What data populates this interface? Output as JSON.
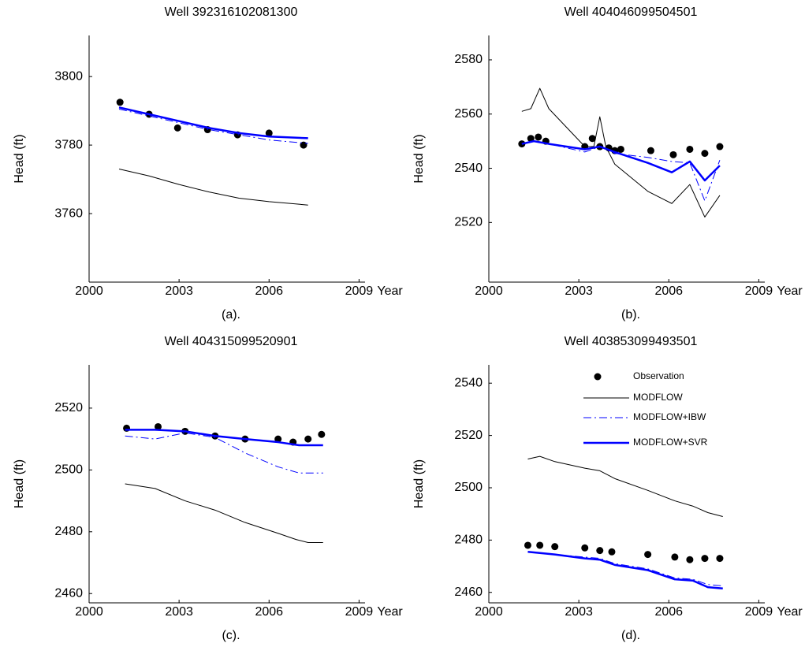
{
  "chart_data": [
    {
      "type": "line",
      "title": "Well 392316102081300",
      "caption": "(a).",
      "x_label": "Year",
      "y_label": "Head (ft)",
      "xlim": [
        2000,
        2009.2
      ],
      "xticks": [
        2000,
        2003,
        2006,
        2009
      ],
      "ylim": [
        3740,
        3812
      ],
      "yticks": [
        3760,
        3780,
        3800
      ],
      "series": [
        {
          "style": "marker",
          "color": "#000000",
          "x": [
            2001.03,
            2002.0,
            2002.95,
            2003.95,
            2004.95,
            2006.0,
            2007.15
          ],
          "values": [
            3792.5,
            3789,
            3785,
            3784.5,
            3783,
            3783.5,
            3780
          ]
        },
        {
          "style": "solid-thin",
          "color": "#000000",
          "x": [
            2001,
            2002,
            2003,
            2004,
            2005,
            2006,
            2007.3
          ],
          "values": [
            3773,
            3771,
            3768.5,
            3766.3,
            3764.5,
            3763.5,
            3762.5
          ]
        },
        {
          "style": "dashdot",
          "color": "#0000ff",
          "x": [
            2001,
            2002,
            2003,
            2004,
            2005,
            2006,
            2007.3
          ],
          "values": [
            3790.5,
            3788.5,
            3786.5,
            3784.5,
            3783,
            3781.5,
            3780.5
          ]
        },
        {
          "style": "solid-thick",
          "color": "#0000ff",
          "x": [
            2001,
            2002,
            2003,
            2004,
            2005,
            2006,
            2007.3
          ],
          "values": [
            3791,
            3789,
            3787,
            3785,
            3783.5,
            3782.5,
            3782
          ]
        }
      ]
    },
    {
      "type": "line",
      "title": "Well 404046099504501",
      "caption": "(b).",
      "x_label": "Year",
      "y_label": "Head (ft)",
      "xlim": [
        2000,
        2009.2
      ],
      "xticks": [
        2000,
        2003,
        2006,
        2009
      ],
      "ylim": [
        2498,
        2589
      ],
      "yticks": [
        2520,
        2540,
        2560,
        2580
      ],
      "series": [
        {
          "style": "marker",
          "color": "#000000",
          "x": [
            2001.1,
            2001.4,
            2001.65,
            2001.9,
            2003.2,
            2003.45,
            2003.7,
            2004.0,
            2004.2,
            2004.4,
            2005.4,
            2006.15,
            2006.7,
            2007.2,
            2007.7
          ],
          "values": [
            2549,
            2551,
            2551.5,
            2550,
            2548,
            2551,
            2548,
            2547.5,
            2546.5,
            2547,
            2546.5,
            2545,
            2547,
            2545.5,
            2548
          ]
        },
        {
          "style": "solid-thin",
          "color": "#000000",
          "x": [
            2001.1,
            2001.4,
            2001.7,
            2002.0,
            2003.2,
            2003.5,
            2003.7,
            2003.9,
            2004.2,
            2005.3,
            2006.1,
            2006.7,
            2007.2,
            2007.7
          ],
          "values": [
            2561,
            2562,
            2569.5,
            2562,
            2548,
            2548,
            2559,
            2548,
            2541.5,
            2531.5,
            2527,
            2534,
            2522,
            2530
          ]
        },
        {
          "style": "dashdot",
          "color": "#0000ff",
          "x": [
            2001.1,
            2001.5,
            2002.0,
            2003.2,
            2003.7,
            2004.2,
            2005.3,
            2006.1,
            2006.7,
            2007.2,
            2007.7
          ],
          "values": [
            2549,
            2550,
            2549,
            2546,
            2548,
            2545.5,
            2544,
            2542.5,
            2542,
            2528,
            2543
          ]
        },
        {
          "style": "solid-thick",
          "color": "#0000ff",
          "x": [
            2001.1,
            2001.5,
            2002.0,
            2003.2,
            2003.7,
            2004.2,
            2005.3,
            2006.1,
            2006.7,
            2007.2,
            2007.7
          ],
          "values": [
            2549,
            2550,
            2549,
            2547,
            2548,
            2546,
            2542,
            2538.5,
            2542.5,
            2535.5,
            2541
          ]
        }
      ]
    },
    {
      "type": "line",
      "title": "Well 404315099520901",
      "caption": "(c).",
      "x_label": "Year",
      "y_label": "Head (ft)",
      "xlim": [
        2000,
        2009.2
      ],
      "xticks": [
        2000,
        2003,
        2006,
        2009
      ],
      "ylim": [
        2457,
        2534
      ],
      "yticks": [
        2460,
        2480,
        2500,
        2520
      ],
      "series": [
        {
          "style": "marker",
          "color": "#000000",
          "x": [
            2001.25,
            2002.3,
            2003.2,
            2004.2,
            2005.2,
            2006.3,
            2006.8,
            2007.3,
            2007.75
          ],
          "values": [
            2513.5,
            2514,
            2512.5,
            2511,
            2510,
            2510,
            2509,
            2510,
            2511.5
          ]
        },
        {
          "style": "solid-thin",
          "color": "#000000",
          "x": [
            2001.2,
            2002.2,
            2003.2,
            2004.2,
            2005.2,
            2006.3,
            2006.9,
            2007.3,
            2007.8
          ],
          "values": [
            2495.5,
            2494,
            2490,
            2487,
            2483,
            2479.5,
            2477.5,
            2476.5,
            2476.5
          ]
        },
        {
          "style": "dashdot",
          "color": "#0000ff",
          "x": [
            2001.2,
            2002.2,
            2003.2,
            2004.2,
            2005.2,
            2006.3,
            2007.0,
            2007.8
          ],
          "values": [
            2511,
            2510,
            2512,
            2510.5,
            2505.5,
            2501,
            2499,
            2499
          ]
        },
        {
          "style": "solid-thick",
          "color": "#0000ff",
          "x": [
            2001.2,
            2002.2,
            2003.2,
            2004.2,
            2005.2,
            2006.3,
            2007.0,
            2007.8
          ],
          "values": [
            2513,
            2513,
            2512.5,
            2511,
            2510,
            2509,
            2508,
            2508
          ]
        }
      ]
    },
    {
      "type": "line",
      "title": "Well 403853099493501",
      "caption": "(d).",
      "x_label": "Year",
      "y_label": "Head (ft)",
      "xlim": [
        2000,
        2009.2
      ],
      "xticks": [
        2000,
        2003,
        2006,
        2009
      ],
      "ylim": [
        2456,
        2547
      ],
      "yticks": [
        2460,
        2480,
        2500,
        2520,
        2540
      ],
      "legend": "upper right",
      "series": [
        {
          "name": "Observation",
          "style": "marker",
          "color": "#000000",
          "x": [
            2001.3,
            2001.7,
            2002.2,
            2003.2,
            2003.7,
            2004.1,
            2005.3,
            2006.2,
            2006.7,
            2007.2,
            2007.7
          ],
          "values": [
            2478,
            2478,
            2477.5,
            2477,
            2476,
            2475.5,
            2474.5,
            2473.5,
            2472.5,
            2473,
            2473
          ]
        },
        {
          "name": "MODFLOW",
          "style": "solid-thin",
          "color": "#000000",
          "x": [
            2001.3,
            2001.7,
            2002.2,
            2003.2,
            2003.7,
            2004.2,
            2005.3,
            2006.2,
            2006.8,
            2007.3,
            2007.8
          ],
          "values": [
            2511,
            2512,
            2510,
            2507.5,
            2506.5,
            2503.5,
            2499,
            2495,
            2493,
            2490.5,
            2489
          ]
        },
        {
          "name": "MODFLOW+IBW",
          "style": "dashdot",
          "color": "#0000ff",
          "x": [
            2001.3,
            2002.2,
            2003.2,
            2003.7,
            2004.2,
            2005.3,
            2006.2,
            2006.8,
            2007.3,
            2007.8
          ],
          "values": [
            2475.5,
            2474.5,
            2473.5,
            2473,
            2471,
            2469,
            2465.5,
            2465,
            2463,
            2462.5
          ]
        },
        {
          "name": "MODFLOW+SVR",
          "style": "solid-thick",
          "color": "#0000ff",
          "x": [
            2001.3,
            2002.2,
            2003.2,
            2003.7,
            2004.2,
            2005.3,
            2006.2,
            2006.8,
            2007.3,
            2007.8
          ],
          "values": [
            2475.5,
            2474.5,
            2473,
            2472.5,
            2470.5,
            2468.5,
            2465,
            2464.5,
            2462,
            2461.5
          ]
        }
      ]
    }
  ]
}
